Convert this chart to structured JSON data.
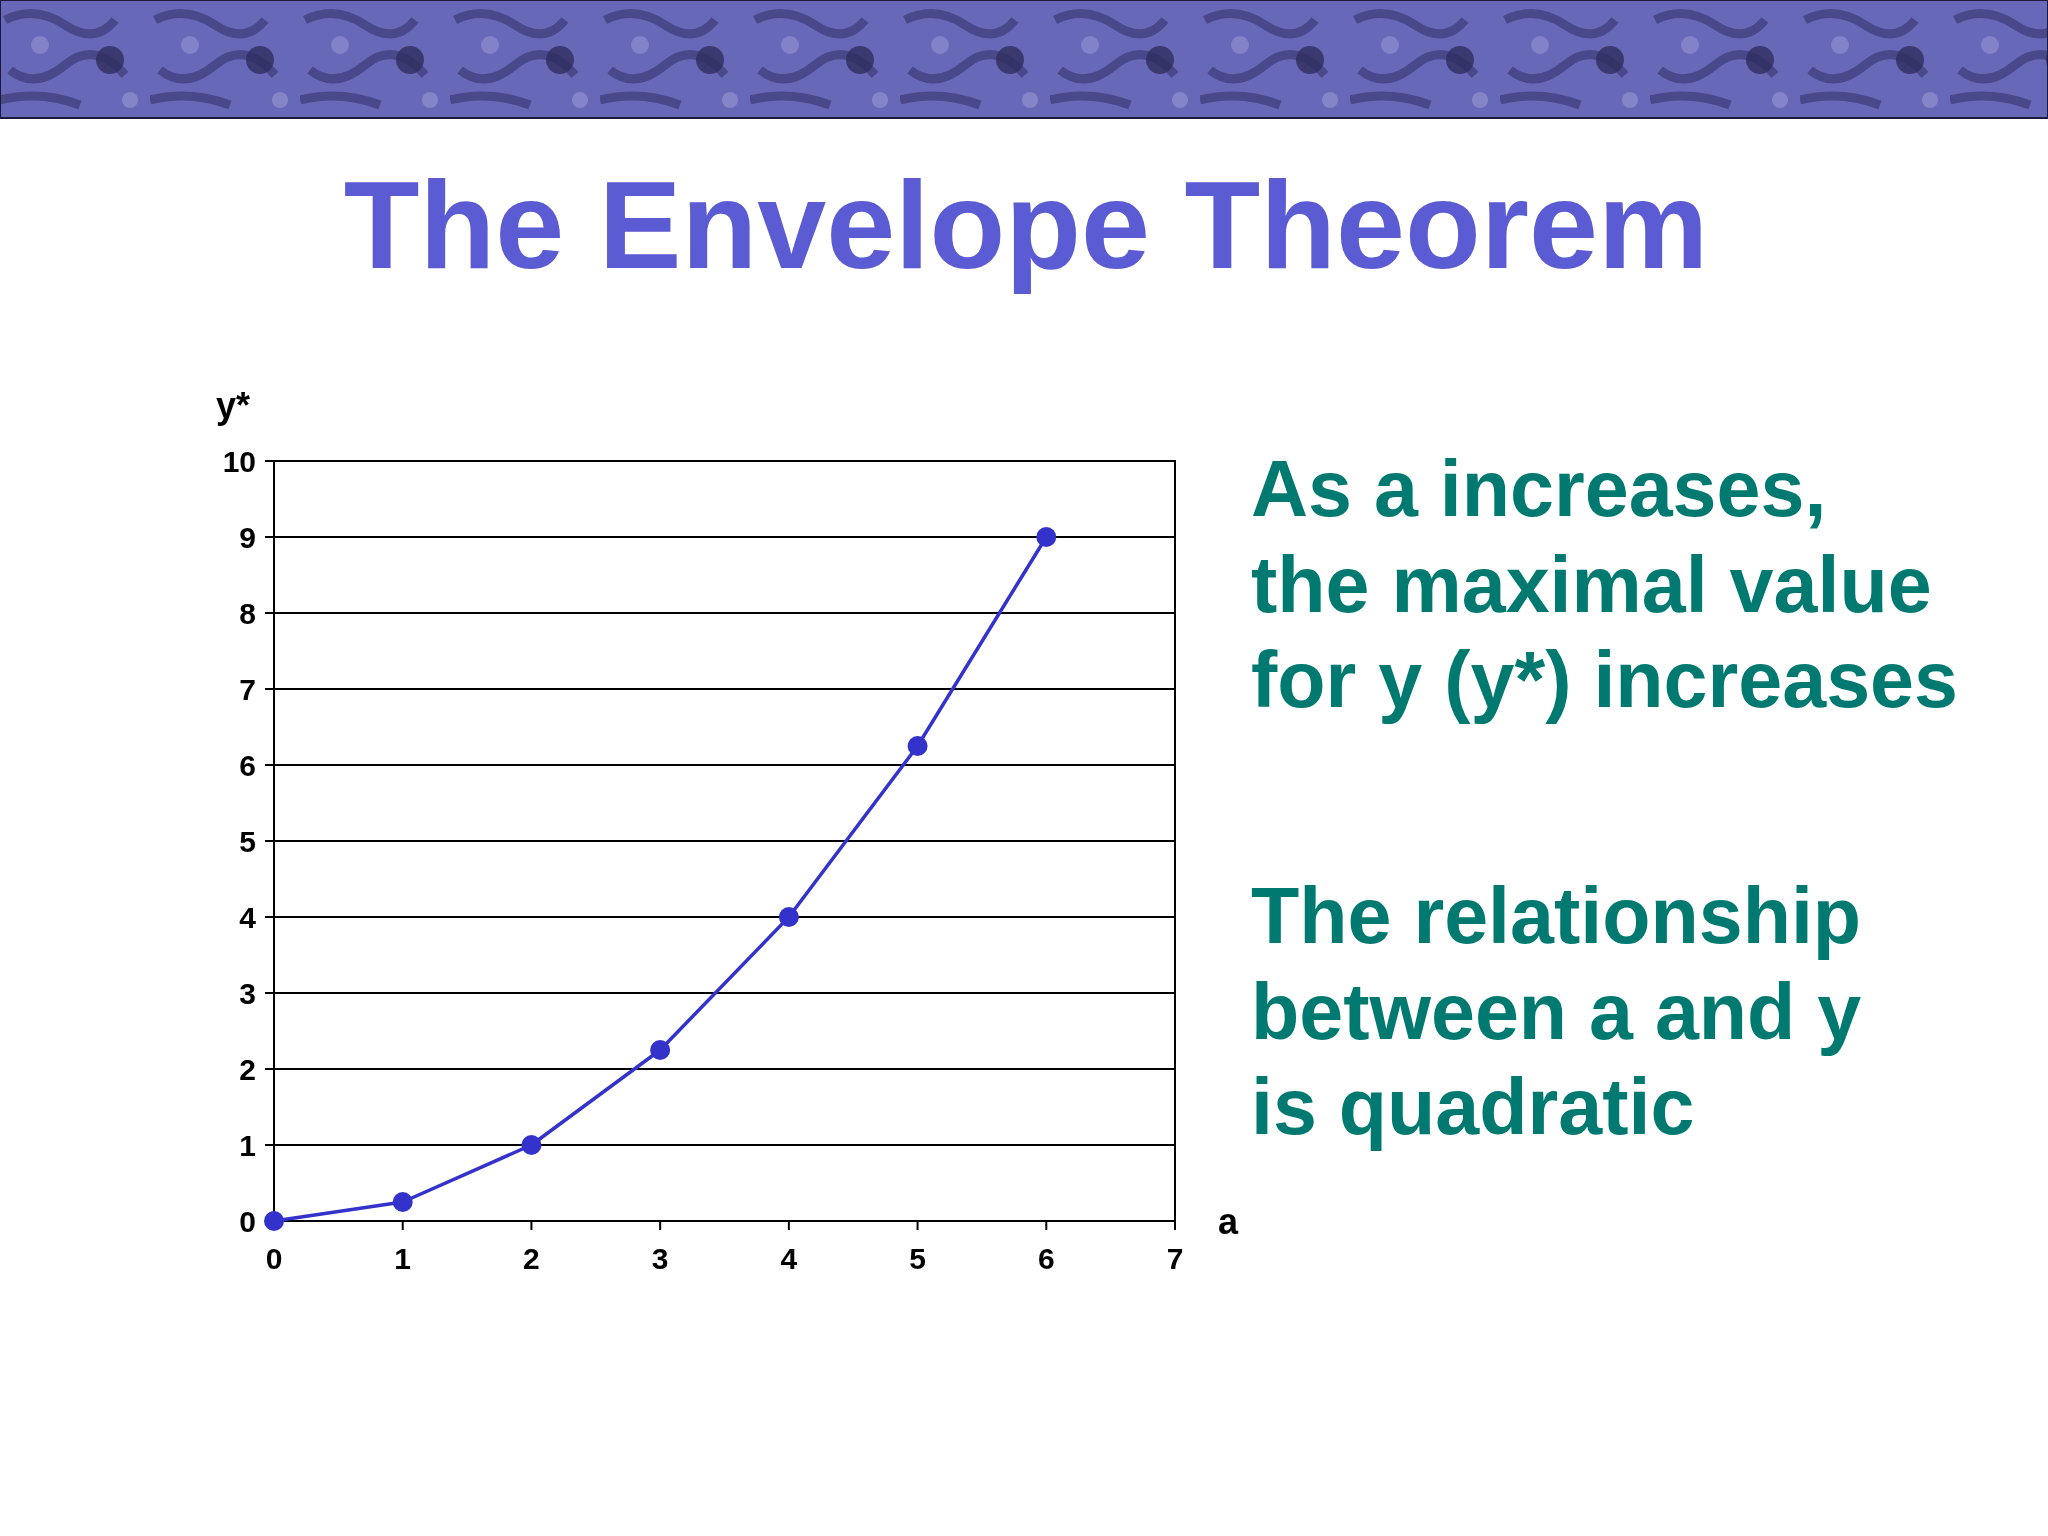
{
  "chart_data": {
    "type": "line",
    "title": "The Envelope Theorem",
    "xlabel": "a",
    "ylabel": "y*",
    "x": [
      0,
      1,
      2,
      3,
      4,
      5,
      6
    ],
    "series": [
      {
        "color": "#3333cc",
        "values": [
          0,
          0.25,
          1,
          2.25,
          4,
          6.25,
          9
        ]
      }
    ],
    "xlim": [
      0,
      7
    ],
    "ylim": [
      0,
      10
    ],
    "xticks": [
      0,
      1,
      2,
      3,
      4,
      5,
      6,
      7
    ],
    "yticks": [
      0,
      1,
      2,
      3,
      4,
      5,
      6,
      7,
      8,
      9,
      10
    ],
    "grid": "y",
    "marker": "circle",
    "line_style": "solid",
    "annotations": [
      "As a increases,\nthe maximal value\nfor y (y*) increases",
      "The relationship\nbetween a and y\nis quadratic"
    ]
  }
}
